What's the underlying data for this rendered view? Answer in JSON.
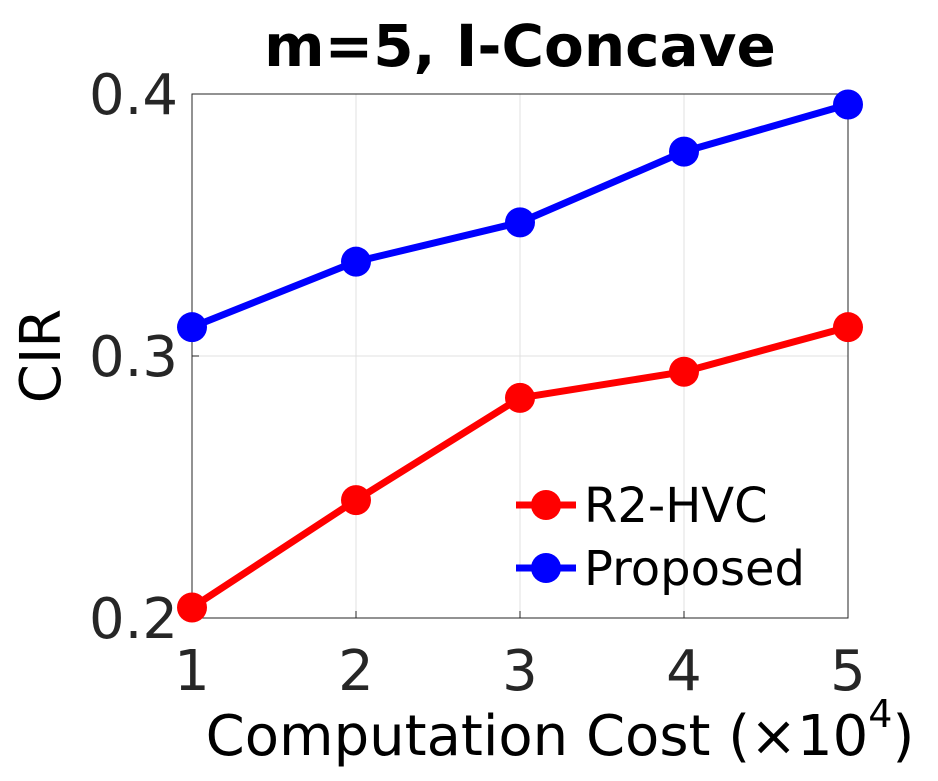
{
  "chart_data": {
    "type": "line",
    "title": "m=5, I-Concave",
    "xlabel": "Computation Cost (×10",
    "xlabel_exponent": "4",
    "xlabel_suffix": ")",
    "ylabel": "CIR",
    "x": [
      1,
      2,
      3,
      4,
      5
    ],
    "xticks": [
      "1",
      "2",
      "3",
      "4",
      "5"
    ],
    "yticks": [
      "0.2",
      "0.3",
      "0.4"
    ],
    "xlim": [
      1,
      5
    ],
    "ylim": [
      0.2,
      0.4
    ],
    "grid": true,
    "legend_position": "bottom-right",
    "series": [
      {
        "name": "R2-HVC",
        "color": "#ff0000",
        "values": [
          0.204,
          0.245,
          0.284,
          0.294,
          0.311
        ]
      },
      {
        "name": "Proposed",
        "color": "#0000ff",
        "values": [
          0.311,
          0.336,
          0.351,
          0.378,
          0.396
        ]
      }
    ]
  }
}
